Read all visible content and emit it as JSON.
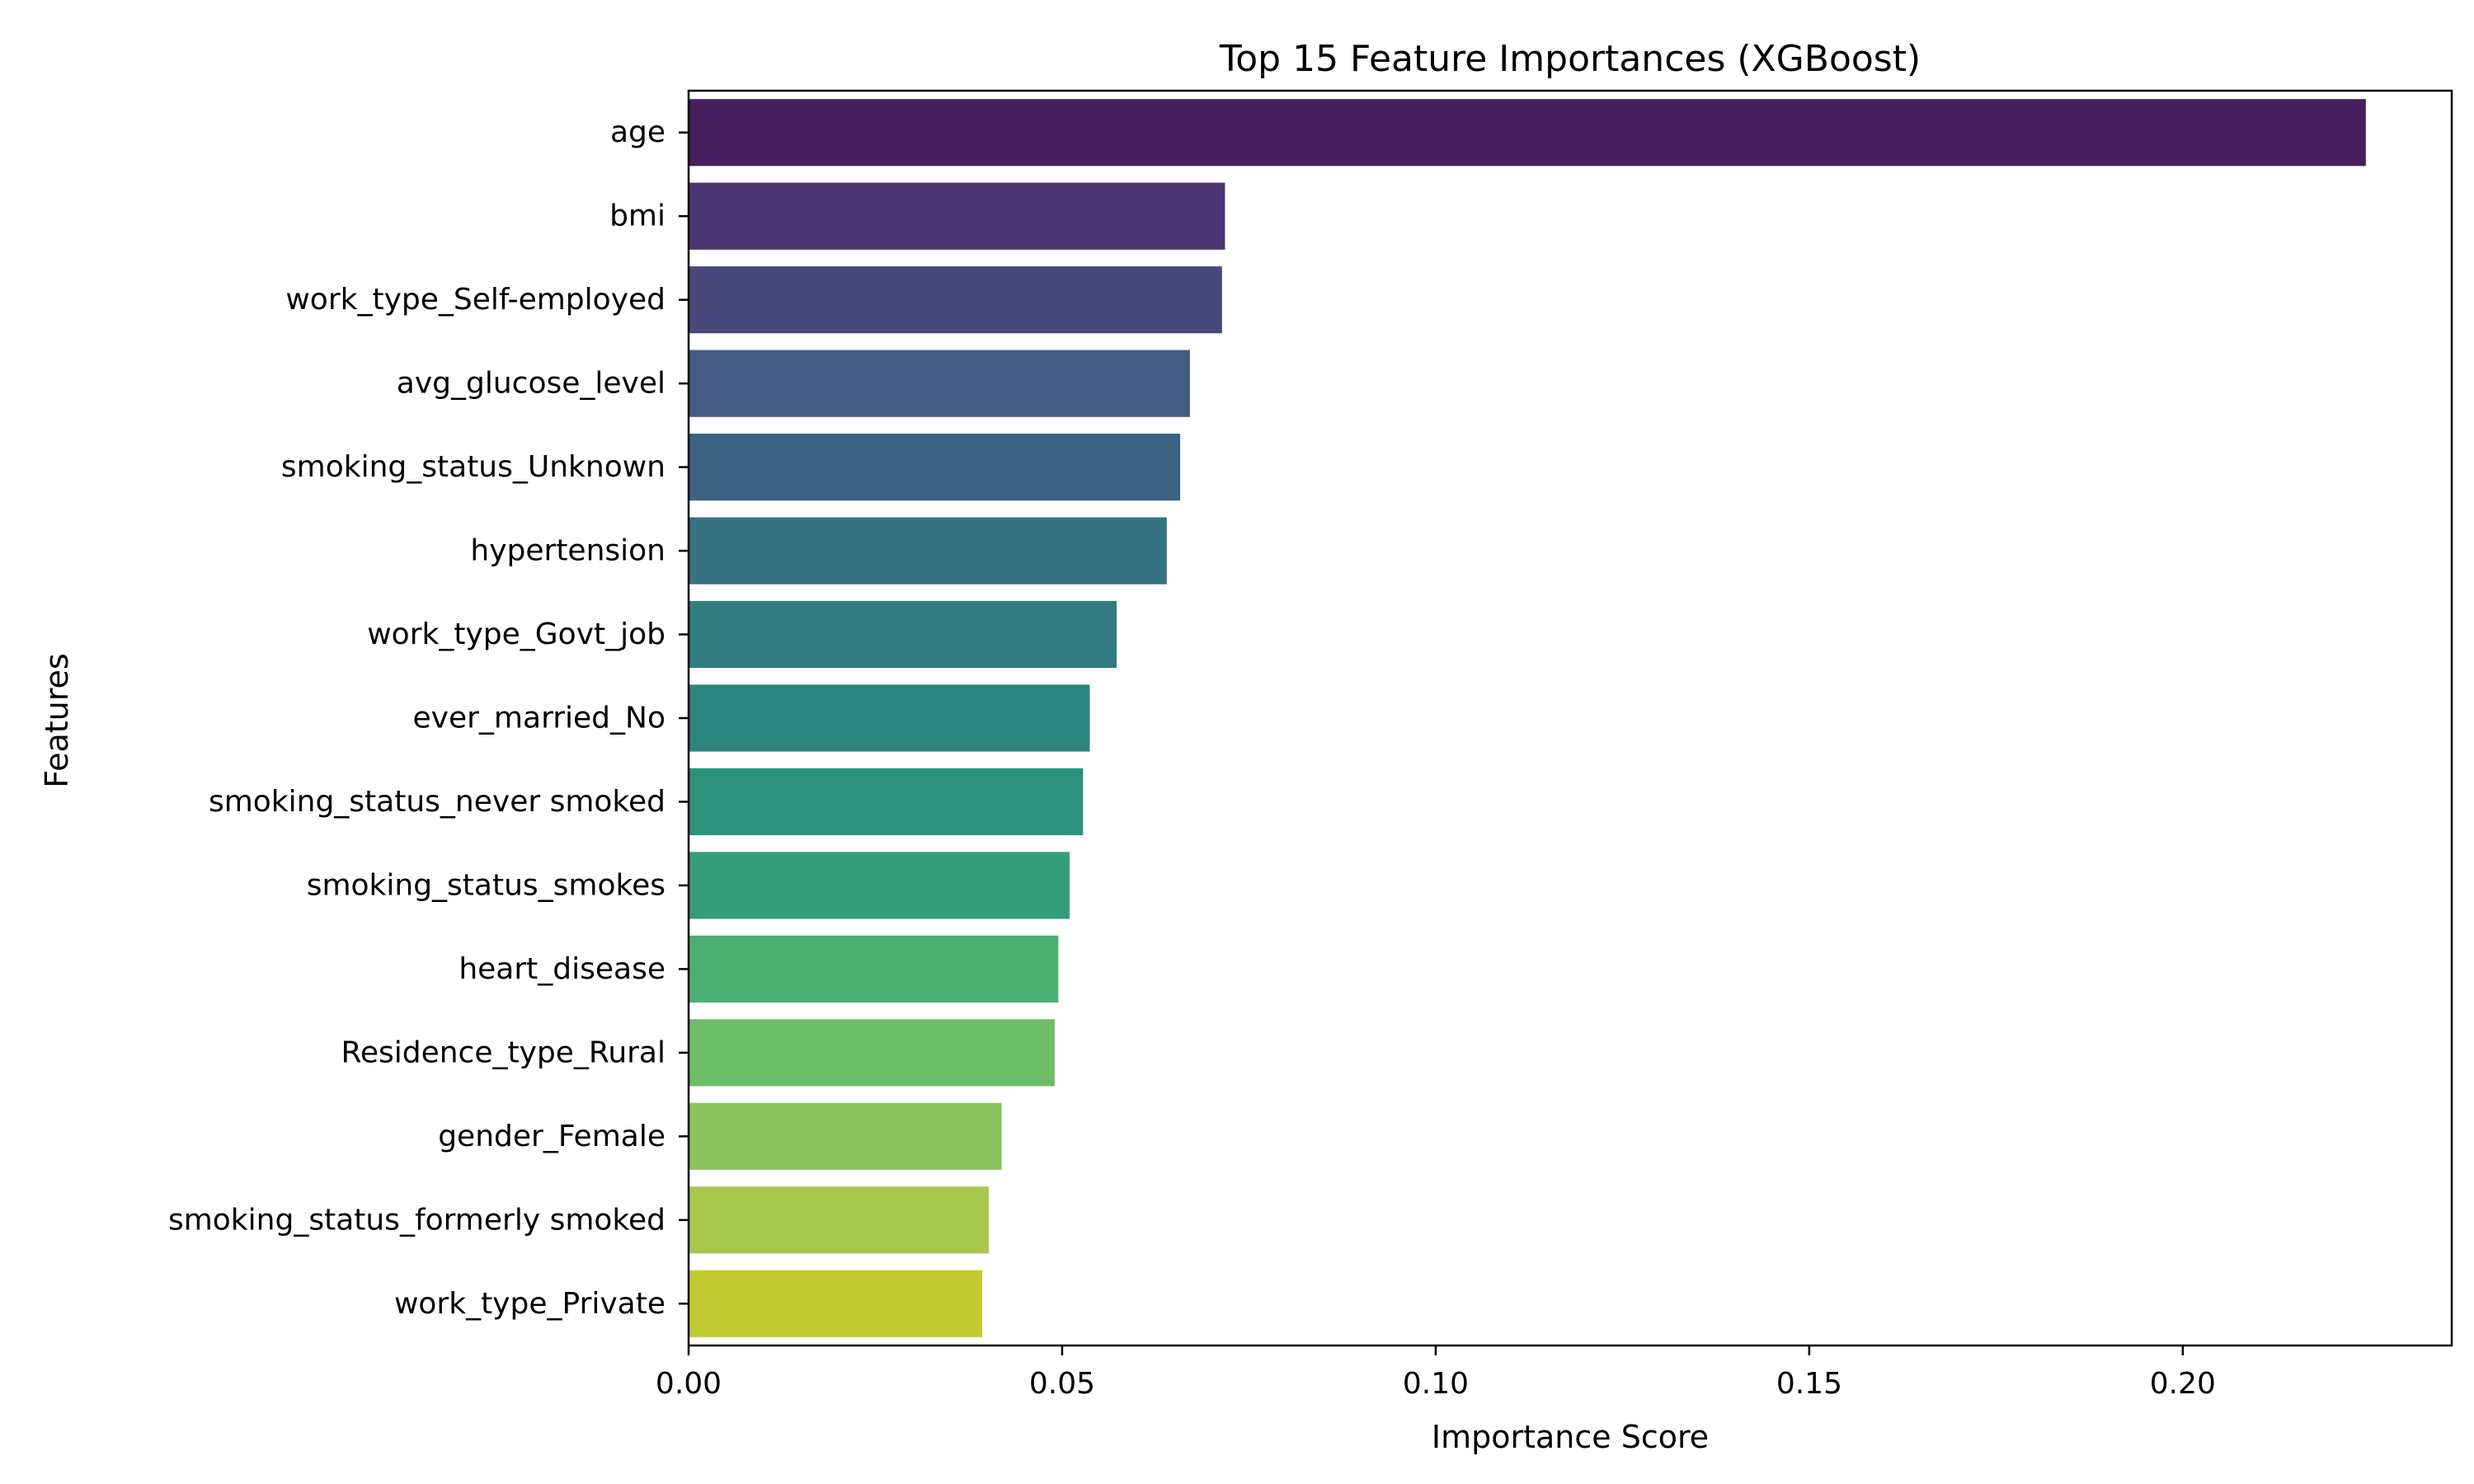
{
  "chart_data": {
    "type": "bar",
    "orientation": "horizontal",
    "title": "Top 15 Feature Importances (XGBoost)",
    "xlabel": "Importance Score",
    "ylabel": "Features",
    "xlim": [
      0.0,
      0.236
    ],
    "xticks": [
      0.0,
      0.05,
      0.1,
      0.15,
      0.2
    ],
    "xtick_labels": [
      "0.00",
      "0.05",
      "0.10",
      "0.15",
      "0.20"
    ],
    "grid": false,
    "categories": [
      "age",
      "bmi",
      "work_type_Self-employed",
      "avg_glucose_level",
      "smoking_status_Unknown",
      "hypertension",
      "work_type_Govt_job",
      "ever_married_No",
      "smoking_status_never smoked",
      "smoking_status_smokes",
      "heart_disease",
      "Residence_type_Rural",
      "gender_Female",
      "smoking_status_formerly smoked",
      "work_type_Private"
    ],
    "values": [
      0.2245,
      0.0718,
      0.0714,
      0.0671,
      0.0658,
      0.064,
      0.0573,
      0.0537,
      0.0528,
      0.051,
      0.0495,
      0.049,
      0.0419,
      0.0402,
      0.0393
    ],
    "colors": [
      "#481e5e",
      "#4a3572",
      "#48497b",
      "#425b80",
      "#3c6382",
      "#367281",
      "#317c80",
      "#2d857e",
      "#2c927d",
      "#369d7a",
      "#4eaf74",
      "#6ebe69",
      "#8ac35d",
      "#a5c84c",
      "#c2cb30"
    ]
  }
}
